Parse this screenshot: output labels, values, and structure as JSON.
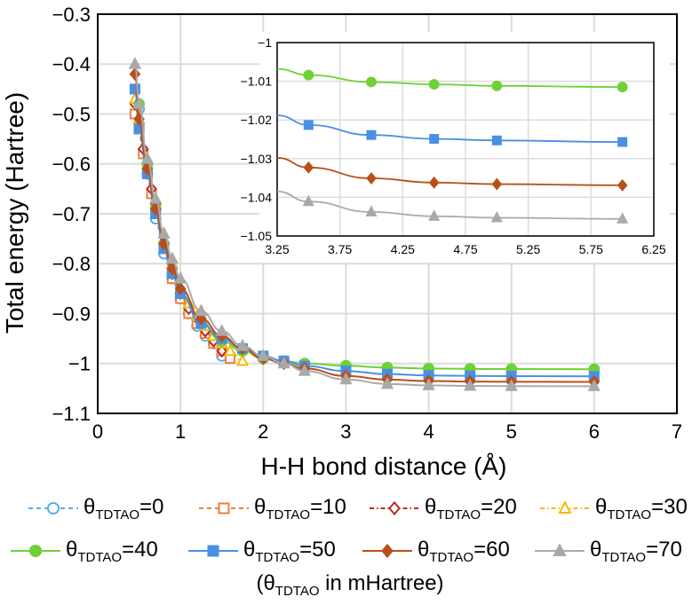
{
  "chart_data": [
    {
      "type": "line",
      "xlabel": "H-H bond distance (Å)",
      "ylabel": "Total energy (Hartree)",
      "xlim": [
        0,
        7
      ],
      "ylim": [
        -1.1,
        -0.3
      ],
      "xticks": [
        0,
        1,
        2,
        3,
        4,
        5,
        6,
        7
      ],
      "yticks": [
        -1.1,
        -1,
        -0.9,
        -0.8,
        -0.7,
        -0.6,
        -0.5,
        -0.4,
        -0.3
      ],
      "xtick_labels": [
        "0",
        "1",
        "2",
        "3",
        "4",
        "5",
        "6",
        "7"
      ],
      "ytick_labels": [
        "−1.1",
        "−1",
        "−0.9",
        "−0.8",
        "−0.7",
        "−0.6",
        "−0.5",
        "−0.4",
        "−0.3"
      ],
      "grid": true,
      "series": [
        {
          "name": "θTDTAO=0",
          "color": "#5aaee8",
          "dash": "5,4",
          "marker": "circle-open",
          "x": [
            0.5,
            0.6,
            0.7,
            0.8,
            0.9,
            1.0,
            1.1,
            1.2,
            1.3,
            1.4,
            1.5
          ],
          "y": [
            -0.49,
            -0.62,
            -0.71,
            -0.78,
            -0.83,
            -0.87,
            -0.9,
            -0.925,
            -0.945,
            -0.96,
            -0.985
          ]
        },
        {
          "name": "θTDTAO=10",
          "color": "#f07f3c",
          "dash": "5,4",
          "marker": "square-open",
          "x": [
            0.45,
            0.5,
            0.55,
            0.6,
            0.65,
            0.7,
            0.8,
            0.9,
            1.0,
            1.1,
            1.2,
            1.3,
            1.4,
            1.5,
            1.6
          ],
          "y": [
            -0.5,
            -0.53,
            -0.58,
            -0.62,
            -0.66,
            -0.69,
            -0.77,
            -0.83,
            -0.87,
            -0.9,
            -0.92,
            -0.94,
            -0.96,
            -0.975,
            -0.99
          ]
        },
        {
          "name": "θTDTAO=20",
          "color": "#c0271f",
          "dash": "5,3,1.5,3",
          "marker": "diamond-open",
          "x": [
            0.45,
            0.5,
            0.55,
            0.6,
            0.65,
            0.7,
            0.8,
            0.9,
            1.0,
            1.1,
            1.2,
            1.3,
            1.4,
            1.5
          ],
          "y": [
            -0.48,
            -0.52,
            -0.57,
            -0.61,
            -0.65,
            -0.68,
            -0.76,
            -0.82,
            -0.86,
            -0.89,
            -0.91,
            -0.935,
            -0.955,
            -0.975
          ]
        },
        {
          "name": "θTDTAO=30",
          "color": "#f5b800",
          "dash": "5,3,1.5,3",
          "marker": "triangle-open",
          "x": [
            0.45,
            0.5,
            0.6,
            0.7,
            0.8,
            0.9,
            1.0,
            1.1,
            1.2,
            1.3,
            1.4,
            1.5,
            1.6,
            1.75
          ],
          "y": [
            -0.47,
            -0.51,
            -0.6,
            -0.67,
            -0.74,
            -0.8,
            -0.85,
            -0.88,
            -0.905,
            -0.925,
            -0.945,
            -0.96,
            -0.975,
            -0.995
          ]
        },
        {
          "name": "θTDTAO=40",
          "color": "#6ed136",
          "dash": "",
          "marker": "circle",
          "x": [
            0.5,
            0.6,
            0.7,
            0.8,
            0.9,
            1.0,
            1.25,
            1.5,
            1.75,
            2.0,
            2.25,
            2.5,
            3.0,
            3.5,
            4.0,
            4.5,
            5.0,
            6.0
          ],
          "y": [
            -0.48,
            -0.6,
            -0.69,
            -0.76,
            -0.82,
            -0.86,
            -0.92,
            -0.955,
            -0.975,
            -0.99,
            -0.995,
            -1.0,
            -1.0045,
            -1.0082,
            -1.0102,
            -1.0108,
            -1.0112,
            -1.0115
          ]
        },
        {
          "name": "θTDTAO=50",
          "color": "#4a90e2",
          "dash": "",
          "marker": "square",
          "x": [
            0.45,
            0.5,
            0.6,
            0.7,
            0.8,
            0.9,
            1.0,
            1.25,
            1.5,
            1.75,
            2.0,
            2.25,
            2.5,
            3.0,
            3.5,
            4.0,
            4.5,
            5.0,
            6.0
          ],
          "y": [
            -0.45,
            -0.53,
            -0.62,
            -0.7,
            -0.77,
            -0.82,
            -0.86,
            -0.92,
            -0.95,
            -0.97,
            -0.985,
            -0.995,
            -1.005,
            -1.015,
            -1.0213,
            -1.0239,
            -1.0249,
            -1.0253,
            -1.0257
          ]
        },
        {
          "name": "θTDTAO=60",
          "color": "#b84f1a",
          "dash": "",
          "marker": "diamond",
          "x": [
            0.45,
            0.5,
            0.6,
            0.7,
            0.8,
            0.9,
            1.0,
            1.25,
            1.5,
            1.75,
            2.0,
            2.25,
            2.5,
            3.0,
            3.5,
            4.0,
            4.5,
            5.0,
            6.0
          ],
          "y": [
            -0.42,
            -0.51,
            -0.61,
            -0.69,
            -0.76,
            -0.81,
            -0.85,
            -0.91,
            -0.945,
            -0.97,
            -0.99,
            -1.0,
            -1.01,
            -1.025,
            -1.0323,
            -1.0351,
            -1.0362,
            -1.0366,
            -1.0369
          ]
        },
        {
          "name": "θTDTAO=70",
          "color": "#a9aaa8",
          "dash": "",
          "marker": "triangle",
          "x": [
            0.45,
            0.5,
            0.6,
            0.7,
            0.8,
            0.9,
            1.0,
            1.25,
            1.5,
            1.75,
            2.0,
            2.25,
            2.5,
            3.0,
            3.5,
            4.0,
            4.5,
            5.0,
            6.0
          ],
          "y": [
            -0.4,
            -0.48,
            -0.59,
            -0.67,
            -0.74,
            -0.79,
            -0.83,
            -0.895,
            -0.935,
            -0.965,
            -0.985,
            -1.0,
            -1.015,
            -1.032,
            -1.0411,
            -1.0438,
            -1.0449,
            -1.0453,
            -1.0456
          ]
        }
      ]
    },
    {
      "type": "line",
      "inset": true,
      "xlim": [
        3.25,
        6.25
      ],
      "ylim": [
        -1.05,
        -1
      ],
      "xticks": [
        3.25,
        3.75,
        4.25,
        4.75,
        5.25,
        5.75,
        6.25
      ],
      "yticks": [
        -1.05,
        -1.04,
        -1.03,
        -1.02,
        -1.01,
        -1
      ],
      "xtick_labels": [
        "3.25",
        "3.75",
        "4.25",
        "4.75",
        "5.25",
        "5.75",
        "6.25"
      ],
      "ytick_labels": [
        "−1.05",
        "−1.04",
        "−1.03",
        "−1.02",
        "−1.01",
        "−1"
      ],
      "grid": true,
      "series": [
        {
          "name": "θTDTAO=40",
          "color": "#6ed136",
          "marker": "circle",
          "x": [
            3.25,
            3.5,
            4.0,
            4.5,
            5.0,
            6.0
          ],
          "y": [
            -1.0068,
            -1.0084,
            -1.0102,
            -1.0108,
            -1.0112,
            -1.0115
          ]
        },
        {
          "name": "θTDTAO=50",
          "color": "#4a90e2",
          "marker": "square",
          "x": [
            3.25,
            3.5,
            4.0,
            4.5,
            5.0,
            6.0
          ],
          "y": [
            -1.0188,
            -1.0213,
            -1.0239,
            -1.0249,
            -1.0253,
            -1.0257
          ]
        },
        {
          "name": "θTDTAO=60",
          "color": "#b84f1a",
          "marker": "diamond",
          "x": [
            3.25,
            3.5,
            4.0,
            4.5,
            5.0,
            6.0
          ],
          "y": [
            -1.0298,
            -1.0323,
            -1.0351,
            -1.0362,
            -1.0366,
            -1.0369
          ]
        },
        {
          "name": "θTDTAO=70",
          "color": "#a9aaa8",
          "marker": "triangle",
          "x": [
            3.25,
            3.5,
            4.0,
            4.5,
            5.0,
            6.0
          ],
          "y": [
            -1.0385,
            -1.0411,
            -1.0438,
            -1.0449,
            -1.0453,
            -1.0456
          ]
        }
      ]
    }
  ],
  "legend": {
    "items": [
      {
        "symbol": "θ",
        "sub": "TDTAO",
        "value": "=0"
      },
      {
        "symbol": "θ",
        "sub": "TDTAO",
        "value": "=10"
      },
      {
        "symbol": "θ",
        "sub": "TDTAO",
        "value": "=20"
      },
      {
        "symbol": "θ",
        "sub": "TDTAO",
        "value": "=30"
      },
      {
        "symbol": "θ",
        "sub": "TDTAO",
        "value": "=40"
      },
      {
        "symbol": "θ",
        "sub": "TDTAO",
        "value": "=50"
      },
      {
        "symbol": "θ",
        "sub": "TDTAO",
        "value": "=60"
      },
      {
        "symbol": "θ",
        "sub": "TDTAO",
        "value": "=70"
      }
    ],
    "note_open": "(θ",
    "note_sub": "TDTAO",
    "note_rest": " in mHartree)"
  }
}
